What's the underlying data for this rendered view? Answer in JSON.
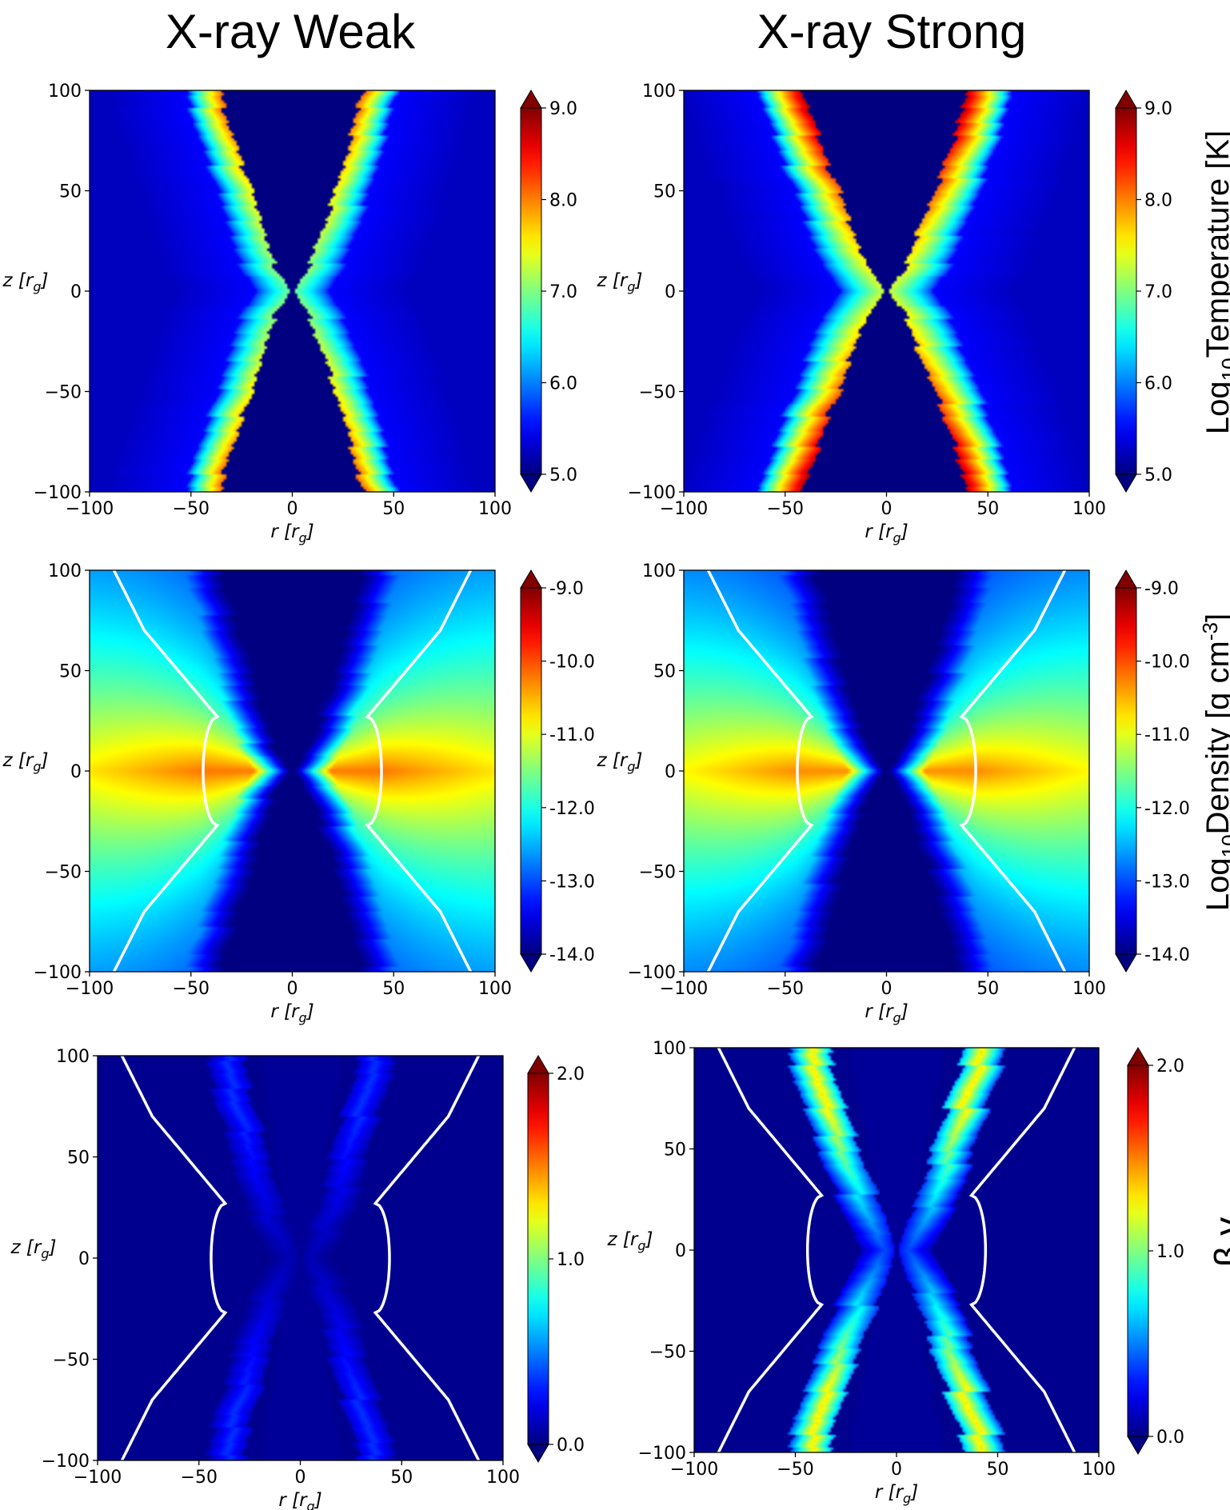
{
  "figure": {
    "columns": [
      "X-ray Weak",
      "X-ray Strong"
    ]
  },
  "colors": {
    "colormap": "jet",
    "contour": "#ffffff",
    "jet_stops": [
      "#00007f",
      "#0000ff",
      "#007fff",
      "#00ffff",
      "#7fff7f",
      "#ffff00",
      "#ff7f00",
      "#ff0000",
      "#7f0000"
    ]
  },
  "chart_data": [
    {
      "type": "heatmap",
      "panel": "top-left",
      "quantity": "temperature",
      "column_title": "X-ray Weak",
      "xlabel": "r [r_g]",
      "ylabel": "z [r_g]",
      "xlim": [
        -100,
        100
      ],
      "ylim": [
        -100,
        100
      ],
      "x_ticks": [
        "−100",
        "−50",
        "0",
        "50",
        "100"
      ],
      "y_ticks": [
        "−100",
        "−50",
        "0",
        "50",
        "100"
      ],
      "colorbar": {
        "range": [
          5.0,
          9.0
        ],
        "ticks": [
          "5.0",
          "6.0",
          "7.0",
          "8.0",
          "9.0"
        ],
        "extend": "both",
        "label": ""
      },
      "structure": {
        "background": 5.5,
        "funnel": 5.0,
        "sheath_peak": 8.1,
        "sheath_width": 17,
        "sheath_slope": 0.25,
        "contour": false
      }
    },
    {
      "type": "heatmap",
      "panel": "top-right",
      "quantity": "temperature",
      "column_title": "X-ray Strong",
      "xlabel": "r [r_g]",
      "ylabel": "z [r_g]",
      "xlim": [
        -100,
        100
      ],
      "ylim": [
        -100,
        100
      ],
      "x_ticks": [
        "−100",
        "−50",
        "0",
        "50",
        "100"
      ],
      "y_ticks": [
        "−100",
        "−50",
        "0",
        "50",
        "100"
      ],
      "colorbar": {
        "range": [
          5.0,
          9.0
        ],
        "ticks": [
          "5.0",
          "6.0",
          "7.0",
          "8.0",
          "9.0"
        ],
        "extend": "both",
        "label": "Log10Temperature [K]"
      },
      "structure": {
        "background": 5.5,
        "funnel": 5.0,
        "sheath_peak": 8.8,
        "sheath_width": 22,
        "sheath_slope": 0.32,
        "contour": false
      }
    },
    {
      "type": "heatmap",
      "panel": "middle-left",
      "quantity": "density",
      "xlabel": "r [r_g]",
      "ylabel": "z [r_g]",
      "xlim": [
        -100,
        100
      ],
      "ylim": [
        -100,
        100
      ],
      "x_ticks": [
        "−100",
        "−50",
        "0",
        "50",
        "100"
      ],
      "y_ticks": [
        "−100",
        "−50",
        "0",
        "50",
        "100"
      ],
      "colorbar": {
        "range": [
          -14.0,
          -9.0
        ],
        "ticks": [
          "-14.0",
          "-13.0",
          "-12.0",
          "-11.0",
          "-10.0",
          "-9.0"
        ],
        "extend": "both",
        "label": ""
      },
      "structure": {
        "midplane_peak": -10.2,
        "outer": -12.0,
        "funnel": -14.0,
        "contour": true
      }
    },
    {
      "type": "heatmap",
      "panel": "middle-right",
      "quantity": "density",
      "xlabel": "r [r_g]",
      "ylabel": "z [r_g]",
      "xlim": [
        -100,
        100
      ],
      "ylim": [
        -100,
        100
      ],
      "x_ticks": [
        "−100",
        "−50",
        "0",
        "50",
        "100"
      ],
      "y_ticks": [
        "−100",
        "−50",
        "0",
        "50",
        "100"
      ],
      "colorbar": {
        "range": [
          -14.0,
          -9.0
        ],
        "ticks": [
          "-14.0",
          "-13.0",
          "-12.0",
          "-11.0",
          "-10.0",
          "-9.0"
        ],
        "extend": "both",
        "label": "Log10Density [g cm-3]"
      },
      "structure": {
        "midplane_peak": -10.3,
        "outer": -12.0,
        "funnel": -14.0,
        "contour": true
      }
    },
    {
      "type": "heatmap",
      "panel": "bottom-left",
      "quantity": "beta_gamma",
      "xlabel": "r [r_g]",
      "ylabel": "z [r_g]",
      "xlim": [
        -100,
        100
      ],
      "ylim": [
        -100,
        100
      ],
      "x_ticks": [
        "−100",
        "−50",
        "0",
        "50",
        "100"
      ],
      "y_ticks": [
        "−100",
        "−50",
        "0",
        "50",
        "100"
      ],
      "colorbar": {
        "range": [
          0.0,
          2.0
        ],
        "ticks": [
          "0.0",
          "1.0",
          "2.0"
        ],
        "extend": "both",
        "label": ""
      },
      "structure": {
        "wind_peak": 0.35,
        "sheath_width": 14,
        "sheath_slope": 0.22,
        "contour": true
      }
    },
    {
      "type": "heatmap",
      "panel": "bottom-right",
      "quantity": "beta_gamma",
      "xlabel": "r [r_g]",
      "ylabel": "z [r_g]",
      "xlim": [
        -100,
        100
      ],
      "ylim": [
        -100,
        100
      ],
      "x_ticks": [
        "−100",
        "−50",
        "0",
        "50",
        "100"
      ],
      "y_ticks": [
        "−100",
        "−50",
        "0",
        "50",
        "100"
      ],
      "colorbar": {
        "range": [
          0.0,
          2.0
        ],
        "ticks": [
          "0.0",
          "1.0",
          "2.0"
        ],
        "extend": "both",
        "label": "β γ"
      },
      "structure": {
        "wind_peak": 1.3,
        "sheath_width": 16,
        "sheath_slope": 0.28,
        "contour": true
      }
    }
  ]
}
